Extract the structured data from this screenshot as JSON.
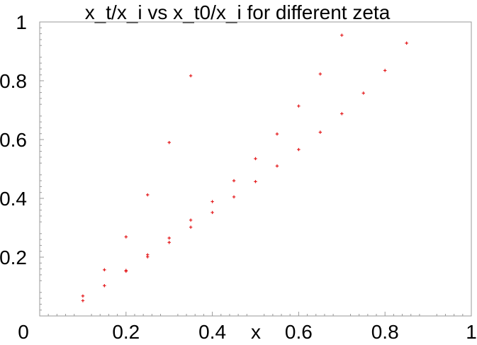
{
  "chart_data": {
    "type": "scatter",
    "title": "x_t/x_i vs x_t0/x_i for different zeta",
    "xlabel": "x",
    "ylabel": "",
    "xlim": [
      0,
      1
    ],
    "ylim": [
      0,
      1
    ],
    "x_ticks": [
      "0.2",
      "0.4",
      "0.6",
      "0.8",
      "1"
    ],
    "y_ticks": [
      "0.2",
      "0.4",
      "0.6",
      "0.8",
      "1"
    ],
    "origin_label": "0",
    "grid": false,
    "legend": "none",
    "marker_color": "#e41a1c",
    "series": [
      {
        "points": [
          [
            0.1,
            0.068
          ],
          [
            0.1,
            0.052
          ],
          [
            0.15,
            0.157
          ],
          [
            0.15,
            0.103
          ],
          [
            0.2,
            0.269
          ],
          [
            0.2,
            0.155
          ],
          [
            0.2,
            0.152
          ],
          [
            0.25,
            0.412
          ],
          [
            0.25,
            0.208
          ],
          [
            0.25,
            0.201
          ],
          [
            0.3,
            0.59
          ],
          [
            0.3,
            0.265
          ],
          [
            0.3,
            0.25
          ],
          [
            0.35,
            0.817
          ],
          [
            0.35,
            0.326
          ],
          [
            0.35,
            0.302
          ],
          [
            0.4,
            0.389
          ],
          [
            0.4,
            0.352
          ],
          [
            0.45,
            0.46
          ],
          [
            0.45,
            0.405
          ],
          [
            0.5,
            0.535
          ],
          [
            0.5,
            0.457
          ],
          [
            0.55,
            0.619
          ],
          [
            0.55,
            0.51
          ],
          [
            0.6,
            0.714
          ],
          [
            0.6,
            0.566
          ],
          [
            0.65,
            0.823
          ],
          [
            0.65,
            0.625
          ],
          [
            0.7,
            0.955
          ],
          [
            0.7,
            0.688
          ],
          [
            0.75,
            0.758
          ],
          [
            0.8,
            0.835
          ],
          [
            0.85,
            0.928
          ]
        ]
      }
    ]
  }
}
